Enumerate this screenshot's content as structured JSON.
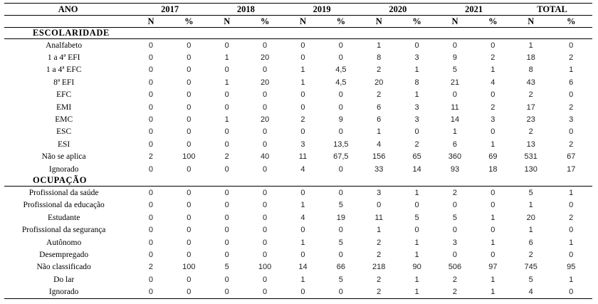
{
  "header": {
    "ano_label": "ANO",
    "years": [
      "2017",
      "2018",
      "2019",
      "2020",
      "2021",
      "TOTAL"
    ],
    "sub_n": "N",
    "sub_pct": "%"
  },
  "sections": [
    {
      "title": "ESCOLARIDADE",
      "rows": [
        {
          "label": "Analfabeto",
          "values": [
            "0",
            "0",
            "0",
            "0",
            "0",
            "0",
            "1",
            "0",
            "0",
            "0",
            "1",
            "0"
          ]
        },
        {
          "label": "1 a 4ª EFI",
          "values": [
            "0",
            "0",
            "1",
            "20",
            "0",
            "0",
            "8",
            "3",
            "9",
            "2",
            "18",
            "2"
          ]
        },
        {
          "label": "1 a 4ª EFC",
          "values": [
            "0",
            "0",
            "0",
            "0",
            "1",
            "4,5",
            "2",
            "1",
            "5",
            "1",
            "8",
            "1"
          ]
        },
        {
          "label": "8ª EFI",
          "values": [
            "0",
            "0",
            "1",
            "20",
            "1",
            "4,5",
            "20",
            "8",
            "21",
            "4",
            "43",
            "6"
          ]
        },
        {
          "label": "EFC",
          "values": [
            "0",
            "0",
            "0",
            "0",
            "0",
            "0",
            "2",
            "1",
            "0",
            "0",
            "2",
            "0"
          ]
        },
        {
          "label": "EMI",
          "values": [
            "0",
            "0",
            "0",
            "0",
            "0",
            "0",
            "6",
            "3",
            "11",
            "2",
            "17",
            "2"
          ]
        },
        {
          "label": "EMC",
          "values": [
            "0",
            "0",
            "1",
            "20",
            "2",
            "9",
            "6",
            "3",
            "14",
            "3",
            "23",
            "3"
          ]
        },
        {
          "label": "ESC",
          "values": [
            "0",
            "0",
            "0",
            "0",
            "0",
            "0",
            "1",
            "0",
            "1",
            "0",
            "2",
            "0"
          ]
        },
        {
          "label": "ESI",
          "values": [
            "0",
            "0",
            "0",
            "0",
            "3",
            "13,5",
            "4",
            "2",
            "6",
            "1",
            "13",
            "2"
          ]
        },
        {
          "label": "Não se aplica",
          "values": [
            "2",
            "100",
            "2",
            "40",
            "11",
            "67,5",
            "156",
            "65",
            "360",
            "69",
            "531",
            "67"
          ]
        },
        {
          "label": "Ignorado",
          "values": [
            "0",
            "0",
            "0",
            "0",
            "4",
            "0",
            "33",
            "14",
            "93",
            "18",
            "130",
            "17"
          ]
        }
      ]
    },
    {
      "title": "OCUPAÇÃO",
      "rows": [
        {
          "label": "Profissional da saúde",
          "values": [
            "0",
            "0",
            "0",
            "0",
            "0",
            "0",
            "3",
            "1",
            "2",
            "0",
            "5",
            "1"
          ]
        },
        {
          "label": "Profissional da educação",
          "values": [
            "0",
            "0",
            "0",
            "0",
            "1",
            "5",
            "0",
            "0",
            "0",
            "0",
            "1",
            "0"
          ]
        },
        {
          "label": "Estudante",
          "values": [
            "0",
            "0",
            "0",
            "0",
            "4",
            "19",
            "11",
            "5",
            "5",
            "1",
            "20",
            "2"
          ]
        },
        {
          "label": "Profissional da segurança",
          "values": [
            "0",
            "0",
            "0",
            "0",
            "0",
            "0",
            "1",
            "0",
            "0",
            "0",
            "1",
            "0"
          ]
        },
        {
          "label": "Autônomo",
          "values": [
            "0",
            "0",
            "0",
            "0",
            "1",
            "5",
            "2",
            "1",
            "3",
            "1",
            "6",
            "1"
          ]
        },
        {
          "label": "Desempregado",
          "values": [
            "0",
            "0",
            "0",
            "0",
            "0",
            "0",
            "2",
            "1",
            "0",
            "0",
            "2",
            "0"
          ]
        },
        {
          "label": "Não classificado",
          "values": [
            "2",
            "100",
            "5",
            "100",
            "14",
            "66",
            "218",
            "90",
            "506",
            "97",
            "745",
            "95"
          ]
        },
        {
          "label": "Do lar",
          "values": [
            "0",
            "0",
            "0",
            "0",
            "1",
            "5",
            "2",
            "1",
            "2",
            "1",
            "5",
            "1"
          ]
        },
        {
          "label": "Ignorado",
          "values": [
            "0",
            "0",
            "0",
            "0",
            "0",
            "0",
            "2",
            "1",
            "2",
            "1",
            "4",
            "0"
          ]
        }
      ]
    }
  ]
}
